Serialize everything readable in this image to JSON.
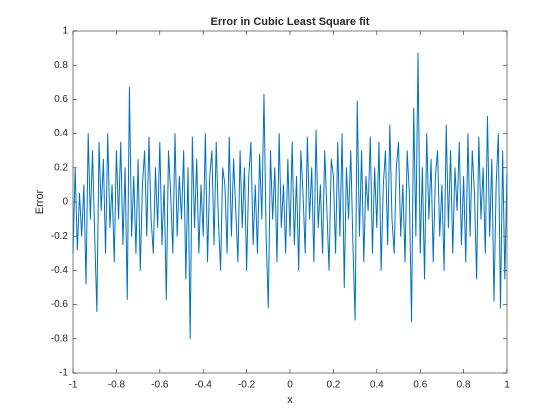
{
  "chart_data": {
    "type": "line",
    "title": "Error in Cubic Least Square fit",
    "x_label": "x",
    "y_label": "Error",
    "color": "#0072bd",
    "xlim": [
      -1,
      1
    ],
    "xticks": [
      -1,
      -0.8,
      -0.6,
      -0.4,
      -0.2,
      0,
      0.2,
      0.4,
      0.6,
      0.8,
      1
    ],
    "ylim": [
      -1,
      1
    ],
    "yticks": [
      -1,
      -0.8,
      -0.6,
      -0.4,
      -0.2,
      0,
      0.2,
      0.4,
      0.6,
      0.8,
      1
    ],
    "grid": false,
    "x": [
      -1,
      -0.99,
      -0.98,
      -0.97,
      -0.96,
      -0.95,
      -0.94,
      -0.93,
      -0.92,
      -0.91,
      -0.9,
      -0.89,
      -0.88,
      -0.87,
      -0.86,
      -0.85,
      -0.84,
      -0.83,
      -0.82,
      -0.81,
      -0.8,
      -0.79,
      -0.78,
      -0.77,
      -0.76,
      -0.75,
      -0.74,
      -0.73,
      -0.72,
      -0.71,
      -0.7,
      -0.69,
      -0.68,
      -0.67,
      -0.66,
      -0.65,
      -0.64,
      -0.63,
      -0.62,
      -0.61,
      -0.6,
      -0.59,
      -0.58,
      -0.57,
      -0.56,
      -0.55,
      -0.54,
      -0.53,
      -0.52,
      -0.51,
      -0.5,
      -0.49,
      -0.48,
      -0.47,
      -0.46,
      -0.45,
      -0.44,
      -0.43,
      -0.42,
      -0.41,
      -0.4,
      -0.39,
      -0.38,
      -0.37,
      -0.36,
      -0.35,
      -0.34,
      -0.33,
      -0.32,
      -0.31,
      -0.3,
      -0.29,
      -0.28,
      -0.27,
      -0.26,
      -0.25,
      -0.24,
      -0.23,
      -0.22,
      -0.21,
      -0.2,
      -0.19,
      -0.18,
      -0.17,
      -0.16,
      -0.15,
      -0.14,
      -0.13,
      -0.12,
      -0.11,
      -0.1,
      -0.09,
      -0.08,
      -0.07,
      -0.06,
      -0.05,
      -0.04,
      -0.03,
      -0.02,
      -0.01,
      0,
      0.01,
      0.02,
      0.03,
      0.04,
      0.05,
      0.06,
      0.07,
      0.08,
      0.09,
      0.1,
      0.11,
      0.12,
      0.13,
      0.14,
      0.15,
      0.16,
      0.17,
      0.18,
      0.19,
      0.2,
      0.21,
      0.22,
      0.23,
      0.24,
      0.25,
      0.26,
      0.27,
      0.28,
      0.29,
      0.3,
      0.31,
      0.32,
      0.33,
      0.34,
      0.35,
      0.36,
      0.37,
      0.38,
      0.39,
      0.4,
      0.41,
      0.42,
      0.43,
      0.44,
      0.45,
      0.46,
      0.47,
      0.48,
      0.49,
      0.5,
      0.51,
      0.52,
      0.53,
      0.54,
      0.55,
      0.56,
      0.57,
      0.58,
      0.59,
      0.6,
      0.61,
      0.62,
      0.63,
      0.64,
      0.65,
      0.66,
      0.67,
      0.68,
      0.69,
      0.7,
      0.71,
      0.72,
      0.73,
      0.74,
      0.75,
      0.76,
      0.77,
      0.78,
      0.79,
      0.8,
      0.81,
      0.82,
      0.83,
      0.84,
      0.85,
      0.86,
      0.87,
      0.88,
      0.89,
      0.9,
      0.91,
      0.92,
      0.93,
      0.94,
      0.95,
      0.96,
      0.97,
      0.98,
      0.99,
      1
    ],
    "values": [
      -0.3,
      0.2,
      -0.28,
      0.05,
      -0.2,
      0.1,
      -0.48,
      0.4,
      -0.1,
      0.3,
      -0.2,
      -0.64,
      0.35,
      -0.05,
      0.25,
      -0.3,
      0.4,
      -0.15,
      0.1,
      -0.35,
      0.3,
      -0.1,
      0.35,
      -0.25,
      0.2,
      -0.57,
      0.67,
      -0.2,
      0.15,
      -0.3,
      0.25,
      -0.4,
      0.1,
      0.3,
      -0.2,
      0.38,
      -0.1,
      -0.3,
      0.2,
      -0.15,
      0.35,
      -0.25,
      0.1,
      -0.57,
      0.3,
      0.05,
      -0.3,
      0.4,
      -0.2,
      0.15,
      -0.1,
      0.3,
      -0.45,
      0.2,
      -0.8,
      0.38,
      -0.15,
      0.25,
      -0.3,
      0.1,
      -0.2,
      0.4,
      -0.35,
      0.15,
      0.3,
      -0.25,
      0.35,
      -0.1,
      -0.4,
      0.2,
      0.1,
      -0.3,
      0.38,
      -0.2,
      0.25,
      -0.05,
      -0.35,
      0.3,
      -0.15,
      0.2,
      -0.4,
      0.15,
      0.35,
      -0.25,
      0.1,
      -0.3,
      0.28,
      -0.1,
      0.63,
      -0.2,
      -0.62,
      0.3,
      -0.1,
      0.2,
      -0.35,
      0.4,
      -0.15,
      0.1,
      -0.3,
      0.25,
      -0.2,
      0.35,
      -0.25,
      0.15,
      -0.4,
      0.3,
      0.05,
      -0.3,
      0.38,
      -0.1,
      0.2,
      -0.35,
      0.42,
      -0.15,
      0.1,
      -0.3,
      0.3,
      -0.05,
      -0.4,
      0.25,
      0.15,
      -0.3,
      0.35,
      -0.2,
      0.4,
      -0.5,
      0.2,
      -0.1,
      0.3,
      -0.25,
      -0.69,
      0.59,
      -0.2,
      0.3,
      -0.35,
      0.15,
      -0.05,
      0.38,
      -0.3,
      0.2,
      -0.15,
      0.35,
      -0.4,
      0.1,
      0.3,
      -0.25,
      0.45,
      -0.1,
      -0.3,
      0.2,
      0.35,
      -0.2,
      0.1,
      -0.35,
      0.3,
      0.05,
      -0.7,
      0.55,
      -0.2,
      0.87,
      -0.3,
      0.2,
      -0.45,
      0.4,
      -0.1,
      0.25,
      -0.35,
      0.15,
      0.3,
      -0.2,
      0.1,
      -0.4,
      0.45,
      -0.15,
      0.3,
      -0.3,
      0.2,
      -0.05,
      0.35,
      -0.25,
      0.15,
      -0.35,
      0.4,
      -0.2,
      0.3,
      0.05,
      -0.45,
      0.38,
      -0.1,
      0.2,
      -0.3,
      0.5,
      -0.2,
      0.25,
      -0.58,
      0.1,
      0.4,
      -0.62,
      0.3,
      -0.45,
      0.18
    ]
  }
}
